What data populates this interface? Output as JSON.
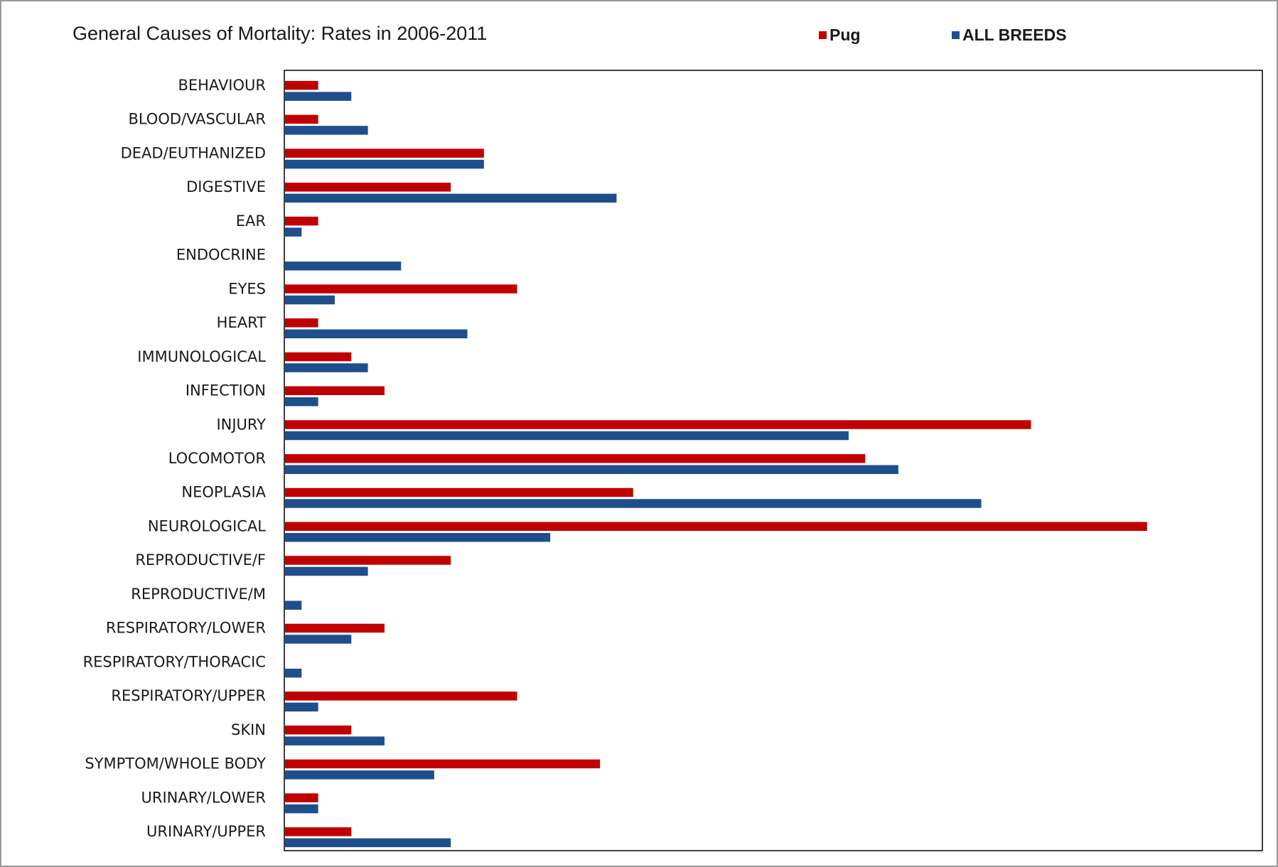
{
  "colors": {
    "pug": "#c00000",
    "all_breeds": "#1f4e8c",
    "frame_border": "#9a9a9a",
    "plot_border": "#000000"
  },
  "chart_data": {
    "type": "bar",
    "orientation": "horizontal",
    "title": "General Causes of Mortality: Rates in 2006-2011",
    "xlabel": "",
    "ylabel": "",
    "legend_position": "top-right",
    "grid": false,
    "xlim": [
      0,
      59
    ],
    "categories": [
      "BEHAVIOUR",
      "BLOOD/VASCULAR",
      "DEAD/EUTHANIZED",
      "DIGESTIVE",
      "EAR",
      "ENDOCRINE",
      "EYES",
      "HEART",
      "IMMUNOLOGICAL",
      "INFECTION",
      "INJURY",
      "LOCOMOTOR",
      "NEOPLASIA",
      "NEUROLOGICAL",
      "REPRODUCTIVE/F",
      "REPRODUCTIVE/M",
      "RESPIRATORY/LOWER",
      "RESPIRATORY/THORACIC",
      "RESPIRATORY/UPPER",
      "SKIN",
      "SYMPTOM/WHOLE BODY",
      "URINARY/LOWER",
      "URINARY/UPPER"
    ],
    "series": [
      {
        "name": "Pug",
        "values": [
          2,
          2,
          12,
          10,
          2,
          0,
          14,
          2,
          4,
          6,
          45,
          35,
          21,
          52,
          10,
          0,
          6,
          0,
          14,
          4,
          19,
          2,
          4
        ]
      },
      {
        "name": "ALL BREEDS",
        "values": [
          4,
          5,
          12,
          20,
          1,
          7,
          3,
          11,
          5,
          2,
          34,
          37,
          42,
          16,
          5,
          1,
          4,
          1,
          2,
          6,
          9,
          2,
          10
        ]
      }
    ]
  }
}
